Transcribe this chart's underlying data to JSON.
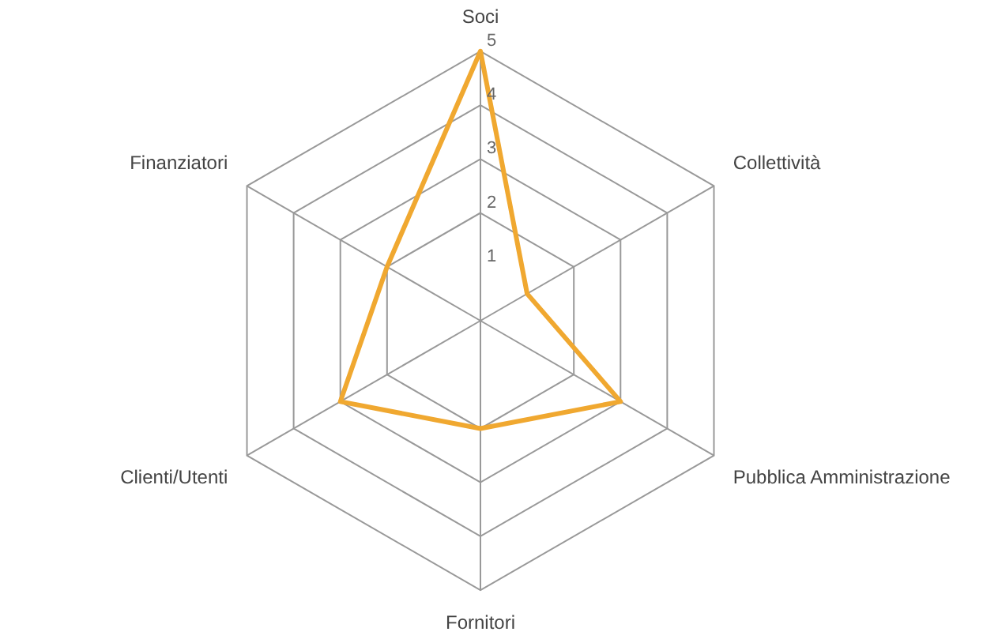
{
  "chart_data": {
    "type": "radar",
    "categories": [
      "Soci",
      "Collettività",
      "Pubblica Amministrazione",
      "Fornitori",
      "Clienti/Utenti",
      "Finanziatori"
    ],
    "series": [
      {
        "color": "#f0a830",
        "values": [
          5,
          1,
          3,
          2,
          3,
          2
        ]
      }
    ],
    "ylim": [
      0,
      5
    ],
    "yticks": [
      1,
      2,
      3,
      4,
      5
    ],
    "legend": false,
    "marker": "none",
    "grid": true
  }
}
